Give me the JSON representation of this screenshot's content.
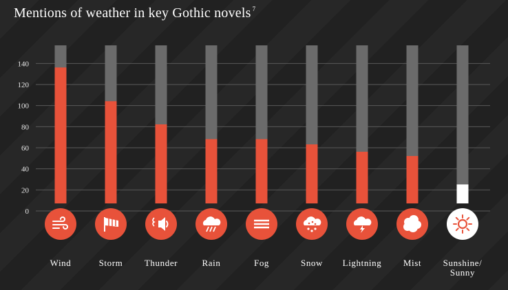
{
  "title": "Mentions of weather in key Gothic novels",
  "title_footnote": "7",
  "colors": {
    "background": "#222222",
    "bar_fill": "#e8523a",
    "bar_fill_highlight": "#ffffff",
    "bar_track": "#6b6b6b",
    "gridline": "#5a5a5a",
    "icon_circle": "#e8523a",
    "icon_circle_highlight": "#ffffff"
  },
  "chart_data": {
    "type": "bar",
    "title": "Mentions of weather in key Gothic novels",
    "categories": [
      "Wind",
      "Storm",
      "Thunder",
      "Rain",
      "Fog",
      "Snow",
      "Lightning",
      "Mist",
      "Sunshine/ Sunny"
    ],
    "category_lines": [
      [
        "Wind"
      ],
      [
        "Storm"
      ],
      [
        "Thunder"
      ],
      [
        "Rain"
      ],
      [
        "Fog"
      ],
      [
        "Snow"
      ],
      [
        "Lightning"
      ],
      [
        "Mist"
      ],
      [
        "Sunshine/",
        "Sunny"
      ]
    ],
    "icons": [
      "wind-icon",
      "storm-flag-icon",
      "thunder-icon",
      "rain-icon",
      "fog-icon",
      "snow-icon",
      "lightning-icon",
      "mist-icon",
      "sun-icon"
    ],
    "values": [
      129,
      97,
      75,
      61,
      61,
      56,
      49,
      45,
      18
    ],
    "highlight_index": 8,
    "yticks": [
      0,
      20,
      40,
      60,
      80,
      100,
      120,
      140
    ],
    "ylim": [
      0,
      150
    ],
    "xlabel": "",
    "ylabel": "",
    "grid": true,
    "legend": "none"
  }
}
